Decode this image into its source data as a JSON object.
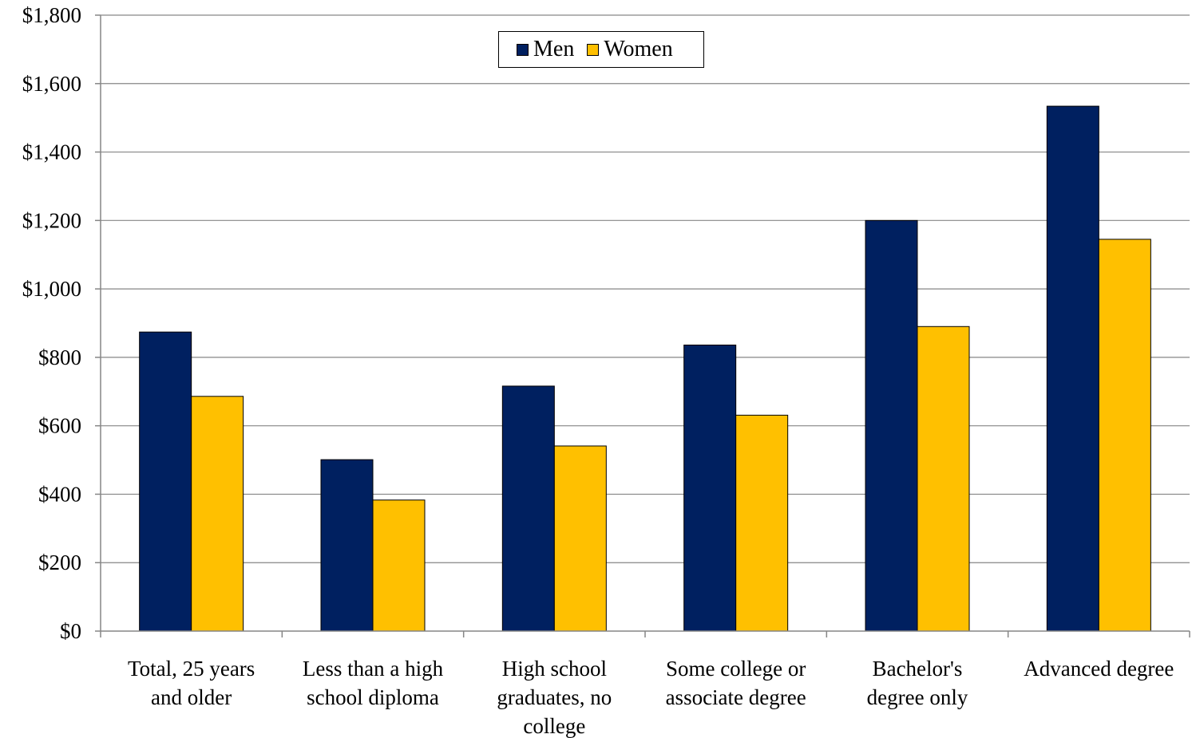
{
  "chart_data": {
    "type": "bar",
    "categories": [
      [
        "Total, 25 years",
        "and older"
      ],
      [
        "Less than a high",
        "school diploma"
      ],
      [
        "High school",
        "graduates, no",
        "college"
      ],
      [
        "Some college or",
        "associate degree"
      ],
      [
        "Bachelor's",
        "degree only"
      ],
      [
        "Advanced degree"
      ]
    ],
    "series": [
      {
        "name": "Men",
        "color": "#002060",
        "values": [
          874,
          501,
          716,
          836,
          1200,
          1534
        ]
      },
      {
        "name": "Women",
        "color": "#FFC000",
        "values": [
          686,
          383,
          541,
          631,
          890,
          1145
        ]
      }
    ],
    "ylim": [
      0,
      1800
    ],
    "yticks": [
      0,
      200,
      400,
      600,
      800,
      1000,
      1200,
      1400,
      1600,
      1800
    ],
    "ytick_labels": [
      "$0",
      "$200",
      "$400",
      "$600",
      "$800",
      "$1,000",
      "$1,200",
      "$1,400",
      "$1,600",
      "$1,800"
    ],
    "grid": true,
    "legend_position": "top-center"
  }
}
